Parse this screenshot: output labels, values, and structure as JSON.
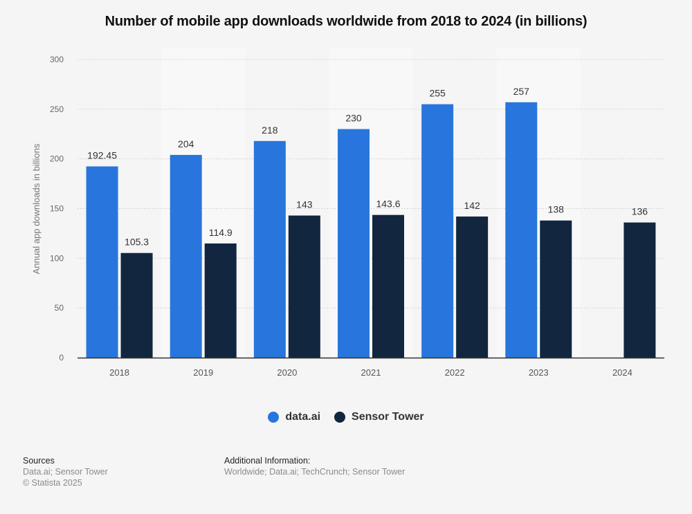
{
  "chart_data": {
    "type": "bar",
    "title": "Number of mobile app downloads worldwide from 2018 to 2024 (in billions)",
    "xlabel": "",
    "ylabel": "Annual app downloads in billions",
    "ylim": [
      0,
      300
    ],
    "yticks": [
      0,
      50,
      100,
      150,
      200,
      250,
      300
    ],
    "grid": true,
    "legend_position": "bottom-center",
    "categories": [
      "2018",
      "2019",
      "2020",
      "2021",
      "2022",
      "2023",
      "2024"
    ],
    "series": [
      {
        "name": "data.ai",
        "color": "#2876dd",
        "values": [
          192.45,
          204,
          218,
          230,
          255,
          257,
          null
        ],
        "labels": [
          "192.45",
          "204",
          "218",
          "230",
          "255",
          "257",
          ""
        ]
      },
      {
        "name": "Sensor Tower",
        "color": "#12263f",
        "values": [
          105.3,
          114.9,
          143,
          143.6,
          142,
          138,
          136
        ],
        "labels": [
          "105.3",
          "114.9",
          "143",
          "143.6",
          "142",
          "138",
          "136"
        ]
      }
    ]
  },
  "footer": {
    "sources_heading": "Sources",
    "sources_text": "Data.ai; Sensor Tower",
    "copyright": "© Statista 2025",
    "additional_heading": "Additional Information:",
    "additional_text": "Worldwide; Data.ai; TechCrunch; Sensor Tower"
  }
}
